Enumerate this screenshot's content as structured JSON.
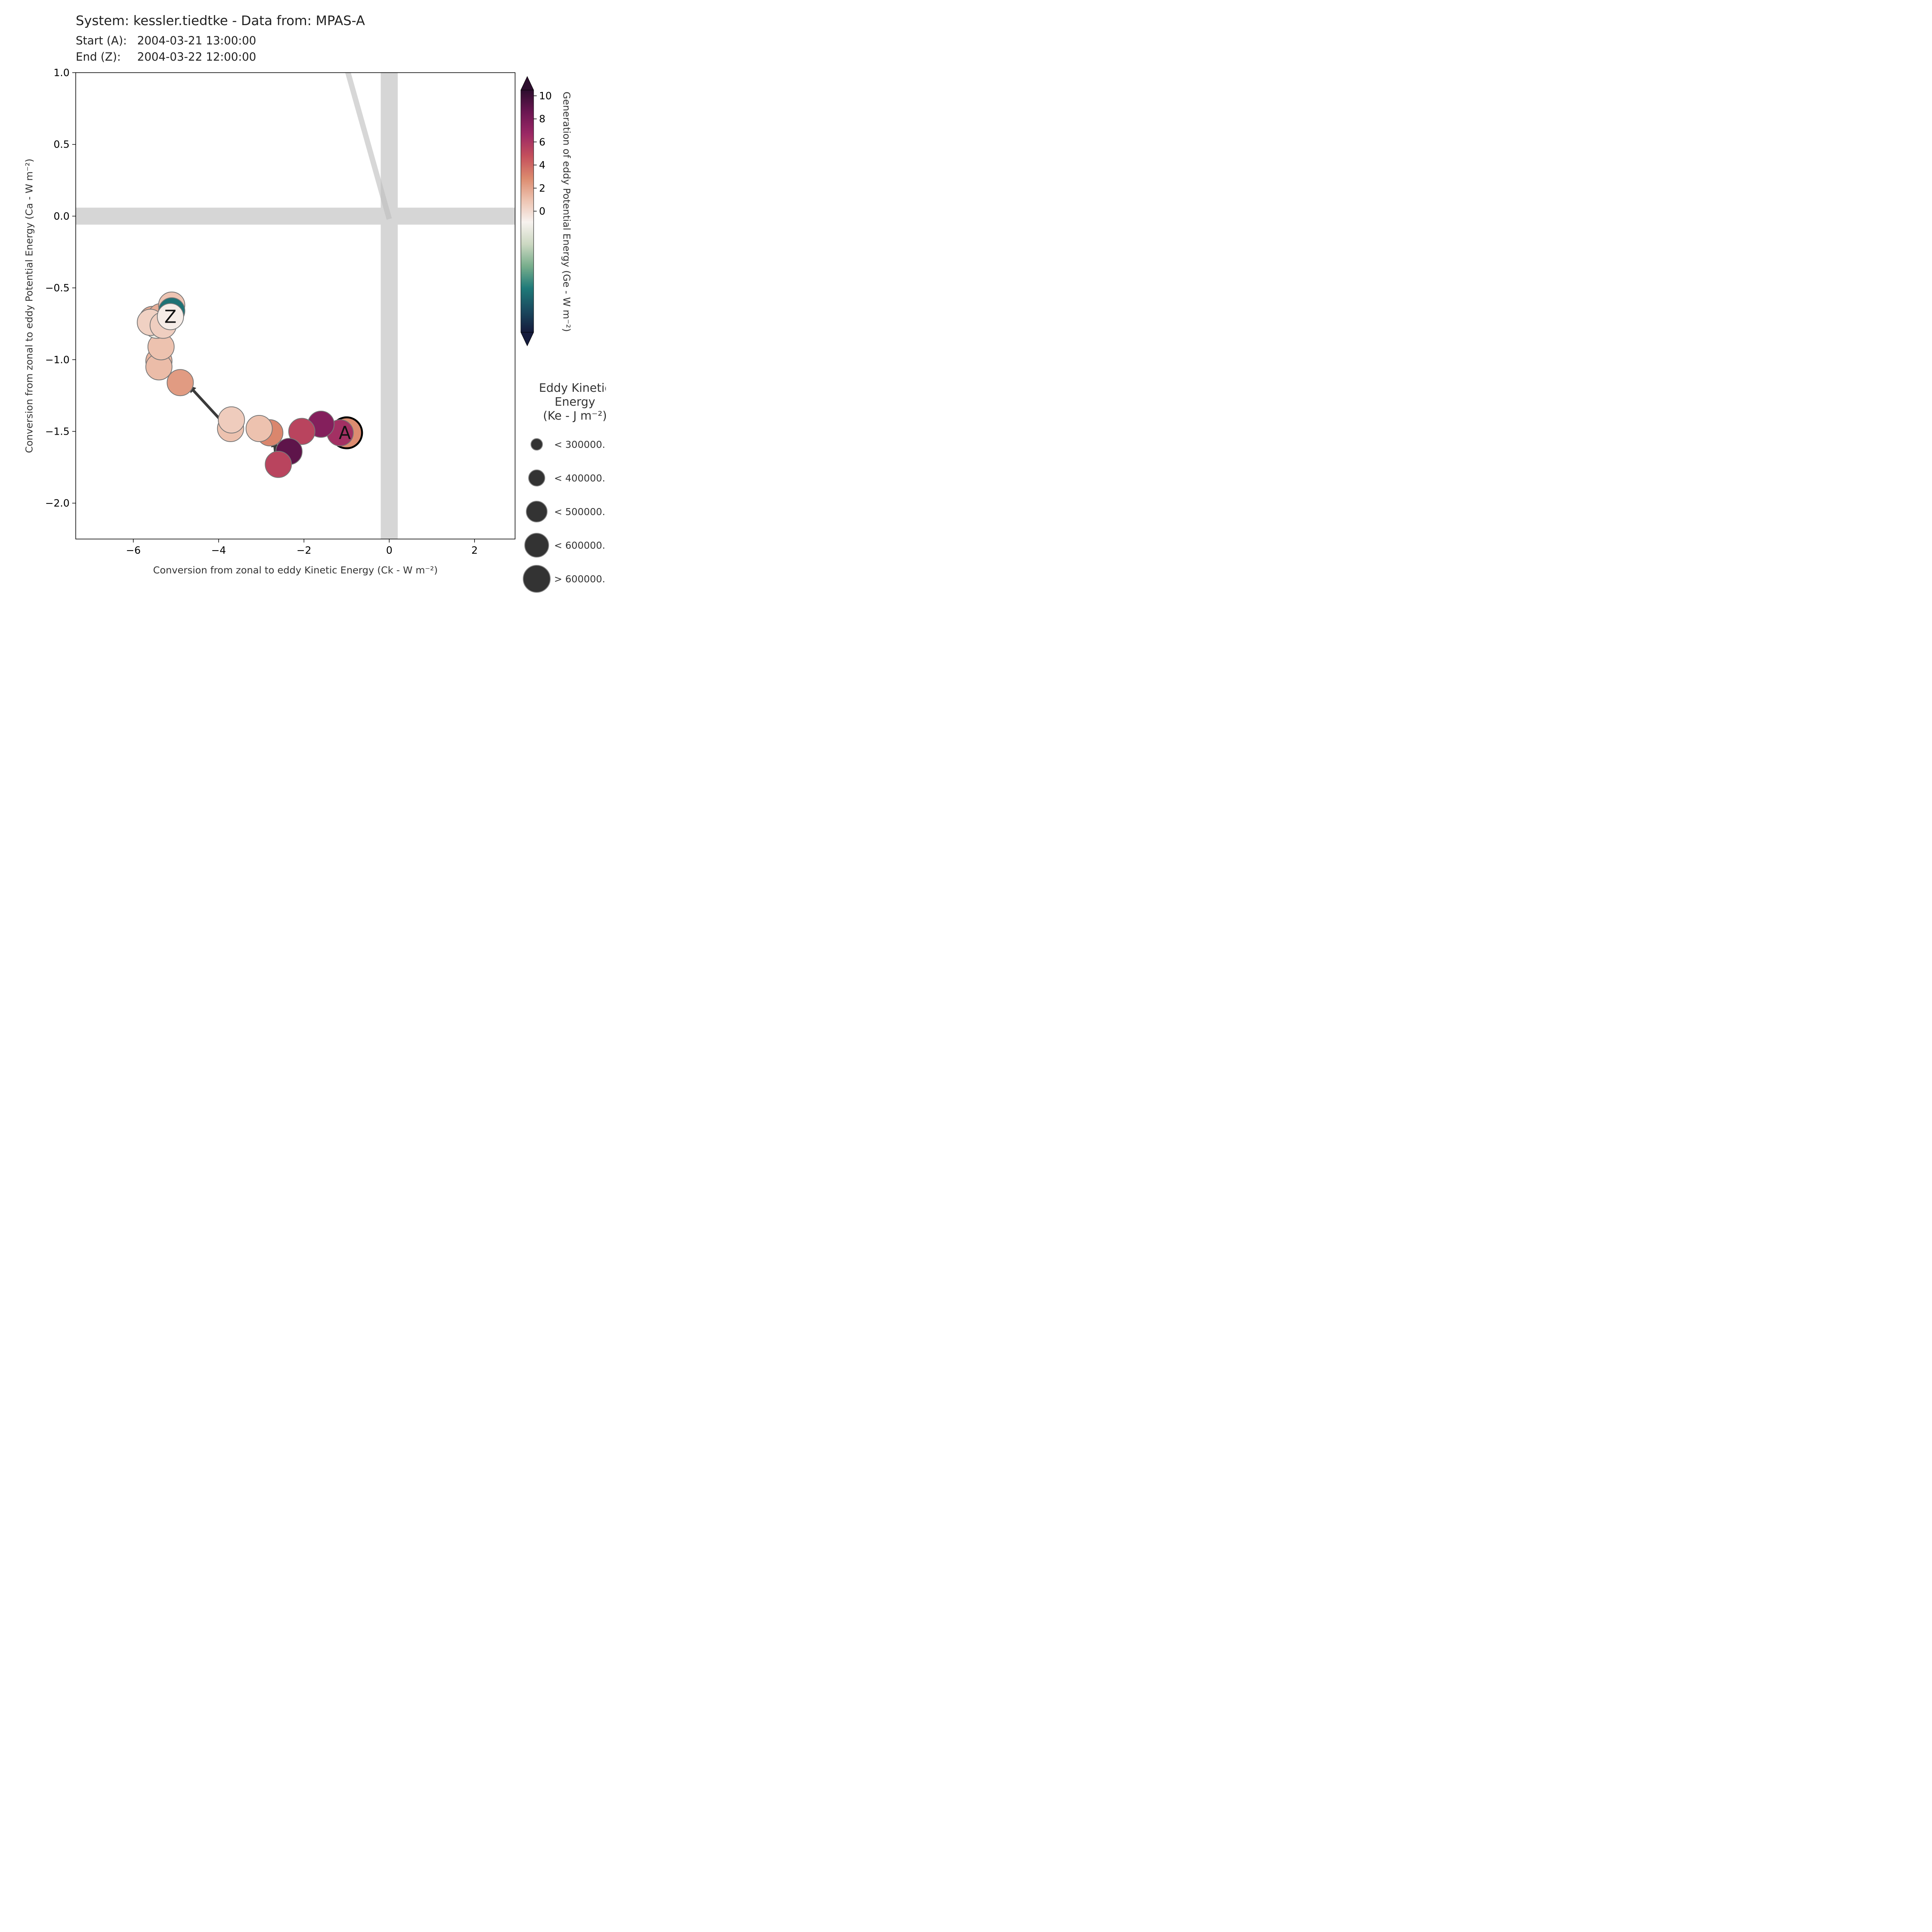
{
  "header": {
    "title": "System: kessler.tiedtke - Data from: MPAS-A",
    "start_label": "Start (A):",
    "start_value": "2004-03-21 13:00:00",
    "end_label": "End (Z):",
    "end_value": "2004-03-22 12:00:00"
  },
  "chart_data": {
    "type": "scatter",
    "xlabel": "Conversion from zonal to eddy Kinetic Energy (Ck -  W m⁻²)",
    "ylabel": "Conversion from zonal to eddy Potential Energy (Ca -  W m⁻²)",
    "xlim": [
      -7.35,
      2.95
    ],
    "ylim": [
      -2.25,
      1.0
    ],
    "xticks": [
      -6,
      -4,
      -2,
      0,
      2
    ],
    "xtick_labels": [
      "−6",
      "−4",
      "−2",
      "0",
      "2"
    ],
    "yticks": [
      1.0,
      0.5,
      0.0,
      -0.5,
      -1.0,
      -1.5,
      -2.0
    ],
    "ytick_labels": [
      "1.0",
      "0.5",
      "0.0",
      "−0.5",
      "−1.0",
      "−1.5",
      "−2.0"
    ],
    "grid": false,
    "colorbar": {
      "label": "Generation of eddy Potential Energy (Ge -  W m⁻²)",
      "ticks": [
        10,
        8,
        6,
        4,
        2,
        0
      ],
      "tick_labels": [
        "10",
        "8",
        "6",
        "4",
        "2",
        "0"
      ],
      "top_value": 10.5,
      "colors_top_to_bottom": [
        "#2d0e2e",
        "#6b1652",
        "#9b2865",
        "#c44f5c",
        "#dc8a6e",
        "#edc3b1",
        "#f7f2ef",
        "#ccd8c2",
        "#78ae8c",
        "#1f7a79",
        "#1a4a5f",
        "#151b3c"
      ]
    },
    "size_legend": {
      "title_lines": [
        "Eddy Kinetic",
        "Energy",
        "(Ke -  J m⁻²)"
      ],
      "entries": [
        "< 300000.",
        "< 400000.",
        "< 500000.",
        "< 600000.",
        "> 600000."
      ],
      "marker_color": "#333333"
    },
    "start_marker_label": "A",
    "end_marker_label": "Z",
    "points": [
      {
        "x": -1.0,
        "y": -1.51,
        "ge": 2.8,
        "size": 4,
        "ring": true
      },
      {
        "x": -1.15,
        "y": -1.51,
        "ge": 6.3
      },
      {
        "x": -1.6,
        "y": -1.45,
        "ge": 7.6
      },
      {
        "x": -2.05,
        "y": -1.5,
        "ge": 5.3
      },
      {
        "x": -2.35,
        "y": -1.64,
        "ge": 9.0
      },
      {
        "x": -2.6,
        "y": -1.73,
        "ge": 5.3
      },
      {
        "x": -2.8,
        "y": -1.51,
        "ge": 3.0
      },
      {
        "x": -3.05,
        "y": -1.48,
        "ge": 1.0
      },
      {
        "x": -3.72,
        "y": -1.48,
        "ge": 1.0
      },
      {
        "x": -3.7,
        "y": -1.42,
        "ge": 0.6
      },
      {
        "x": -4.9,
        "y": -1.16,
        "ge": 2.3
      },
      {
        "x": -5.4,
        "y": -1.01,
        "ge": 1.5
      },
      {
        "x": -5.4,
        "y": -1.05,
        "ge": 1.2
      },
      {
        "x": -5.35,
        "y": -0.91,
        "ge": 1.0
      },
      {
        "x": -5.45,
        "y": -0.76,
        "ge": -1.5
      },
      {
        "x": -5.55,
        "y": -0.72,
        "ge": 1.8
      },
      {
        "x": -5.35,
        "y": -0.7,
        "ge": 1.7
      },
      {
        "x": -5.3,
        "y": -0.75,
        "ge": 0.8
      },
      {
        "x": -5.1,
        "y": -0.62,
        "ge": 0.9
      },
      {
        "x": -5.1,
        "y": -0.66,
        "ge": -7.0
      },
      {
        "x": -5.6,
        "y": -0.74,
        "ge": 0.4
      },
      {
        "x": -5.3,
        "y": -0.76,
        "ge": 0.5
      },
      {
        "x": -5.13,
        "y": -0.7,
        "ge": -0.7
      }
    ],
    "arrows": [
      {
        "from": [
          -3.8,
          -1.47
        ],
        "to": [
          -4.7,
          -1.18
        ]
      },
      {
        "from": [
          -2.65,
          -1.7
        ],
        "to": [
          -2.7,
          -1.56
        ]
      }
    ],
    "guides": {
      "vertical_band_x": 0,
      "horizontal_band_y": 0,
      "diagonal_from": [
        -1.0,
        1.0
      ],
      "diagonal_to": [
        0.0,
        -0.02
      ]
    }
  }
}
